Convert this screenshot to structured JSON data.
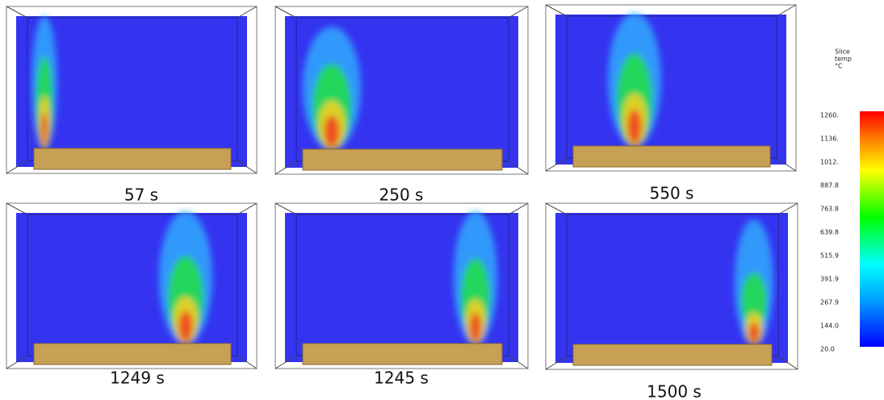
{
  "panels": [
    {
      "label": "57 s"
    },
    {
      "label": "250 s"
    },
    {
      "label": "550 s"
    },
    {
      "label": "1249 s"
    },
    {
      "label": "1245 s"
    },
    {
      "label": "1500 s"
    }
  ],
  "colorbar": {
    "title": [
      "Slice",
      "temp",
      "°C"
    ],
    "ticks": [
      "1260.",
      "1136.",
      "1012.",
      "887.8",
      "763.8",
      "639.8",
      "515.9",
      "391.9",
      "267.9",
      "144.0",
      "20.0"
    ]
  }
}
